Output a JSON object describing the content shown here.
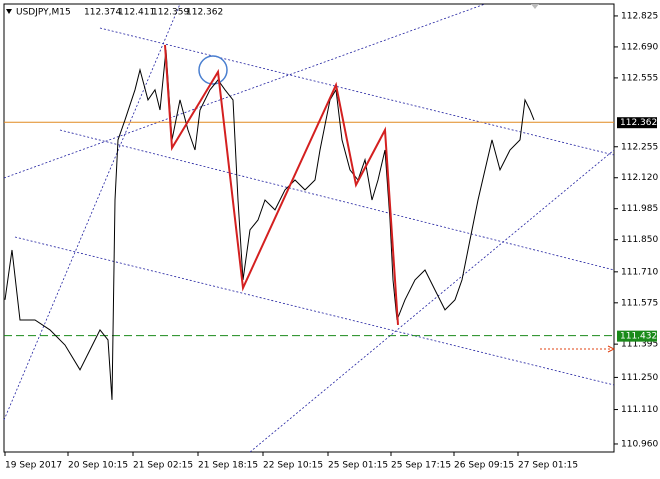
{
  "chart_data": {
    "type": "line",
    "title": "USDJPY,M15",
    "header_values": [
      112.374,
      112.411,
      112.359,
      112.362
    ],
    "x": [
      0,
      7,
      15,
      30,
      45,
      60,
      75,
      85,
      95,
      103,
      107,
      110,
      113,
      120,
      130,
      135,
      143,
      150,
      155,
      161,
      167,
      175,
      183,
      190,
      195,
      205,
      213,
      220,
      228,
      233,
      238,
      245,
      253,
      260,
      270,
      280,
      290,
      300,
      310,
      315,
      325,
      331,
      337,
      345,
      353,
      360,
      367,
      373,
      380,
      385,
      388,
      392,
      400,
      410,
      420,
      430,
      440,
      450,
      457,
      465,
      473,
      480,
      487,
      495,
      505,
      515,
      520,
      525,
      529
    ],
    "values": [
      111.588,
      111.805,
      111.5,
      111.5,
      111.457,
      111.391,
      111.283,
      111.37,
      111.457,
      111.413,
      111.152,
      112.023,
      112.285,
      112.372,
      112.503,
      112.59,
      112.459,
      112.503,
      112.415,
      112.677,
      112.285,
      112.459,
      112.328,
      112.241,
      112.415,
      112.503,
      112.546,
      112.503,
      112.459,
      112.023,
      111.675,
      111.893,
      111.936,
      112.023,
      111.98,
      112.067,
      112.11,
      112.067,
      112.11,
      112.241,
      112.459,
      112.503,
      112.285,
      112.154,
      112.11,
      112.198,
      112.023,
      112.11,
      112.241,
      111.936,
      111.675,
      111.5,
      111.588,
      111.675,
      111.718,
      111.631,
      111.544,
      111.588,
      111.675,
      111.849,
      112.023,
      112.154,
      112.285,
      112.154,
      112.241,
      112.285,
      112.459,
      112.415,
      112.372
    ],
    "color": "#000000",
    "zigzag": {
      "x": [
        160,
        167,
        213,
        238,
        331,
        351,
        380,
        393
      ],
      "values": [
        112.699,
        112.25,
        112.581,
        111.64,
        112.524,
        112.089,
        112.328,
        111.479
      ],
      "color": "#d42020"
    },
    "price_line": 112.362,
    "level_line": 111.432,
    "level_color": "#1a8a1a",
    "xlim": [
      0,
      609
    ],
    "ylim": [
      110.925,
      112.877
    ],
    "xticks": [
      {
        "value": 0,
        "label": "19 Sep 2017"
      },
      {
        "value": 63,
        "label": "20 Sep 10:15"
      },
      {
        "value": 128,
        "label": "21 Sep 02:15"
      },
      {
        "value": 193,
        "label": "21 Sep 18:15"
      },
      {
        "value": 258,
        "label": "22 Sep 10:15"
      },
      {
        "value": 323,
        "label": "25 Sep 01:15"
      },
      {
        "value": 386,
        "label": "25 Sep 17:15"
      },
      {
        "value": 449,
        "label": "26 Sep 09:15"
      },
      {
        "value": 513,
        "label": "27 Sep 01:15"
      }
    ],
    "yticks": [
      112.825,
      {
        "value": 112.69,
        "label": "112.690"
      },
      112.555,
      112.255,
      {
        "value": 112.12,
        "label": "112.120"
      },
      111.985,
      {
        "value": 111.85,
        "label": "111.850"
      },
      {
        "value": 111.71,
        "label": "111.710"
      },
      111.575,
      111.395,
      {
        "value": 111.25,
        "label": "111.250"
      },
      {
        "value": 111.11,
        "label": "111.110"
      },
      {
        "value": 110.96,
        "label": "110.960"
      }
    ]
  }
}
